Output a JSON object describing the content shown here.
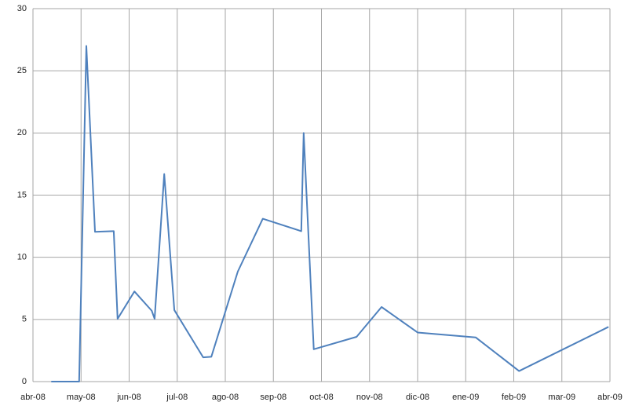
{
  "chart_data": {
    "type": "line",
    "x": [
      0.38,
      0.96,
      1.11,
      1.29,
      1.68,
      1.76,
      2.11,
      2.47,
      2.53,
      2.73,
      2.94,
      3.54,
      3.71,
      4.26,
      4.78,
      5.58,
      5.63,
      5.84,
      6.73,
      7.25,
      8.0,
      9.21,
      10.11,
      11.97
    ],
    "series": [
      {
        "color": "#4f81bd",
        "values": [
          0,
          0,
          27,
          12.05,
          12.1,
          5.05,
          7.25,
          5.7,
          5.05,
          16.7,
          5.75,
          1.95,
          2.0,
          8.85,
          13.1,
          12.1,
          20,
          2.6,
          3.6,
          6.0,
          3.95,
          3.55,
          0.85,
          4.4
        ]
      }
    ],
    "xlim": [
      0,
      12
    ],
    "xticks": [
      {
        "value": 0,
        "label": "abr-08"
      },
      {
        "value": 1,
        "label": "may-08"
      },
      {
        "value": 2,
        "label": "jun-08"
      },
      {
        "value": 3,
        "label": "jul-08"
      },
      {
        "value": 4,
        "label": "ago-08"
      },
      {
        "value": 5,
        "label": "sep-08"
      },
      {
        "value": 6,
        "label": "oct-08"
      },
      {
        "value": 7,
        "label": "nov-08"
      },
      {
        "value": 8,
        "label": "dic-08"
      },
      {
        "value": 9,
        "label": "ene-09"
      },
      {
        "value": 10,
        "label": "feb-09"
      },
      {
        "value": 11,
        "label": "mar-09"
      },
      {
        "value": 12,
        "label": "abr-09"
      }
    ],
    "ylim": [
      0,
      30
    ],
    "yticks": [
      0,
      5,
      10,
      15,
      20,
      25,
      30
    ],
    "grid": true
  }
}
